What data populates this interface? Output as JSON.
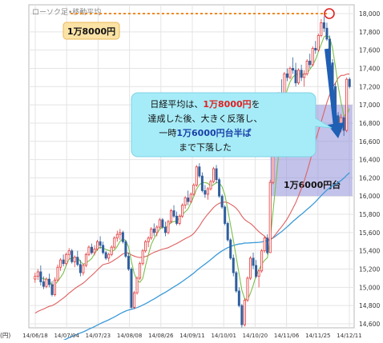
{
  "chart_data": {
    "type": "candlestick",
    "title": "ローソク足•移動平均",
    "y_unit_label": "(円)",
    "ylim": [
      14600,
      18000
    ],
    "y_ticks": [
      14600,
      14800,
      15000,
      15200,
      15400,
      15600,
      15800,
      16000,
      16200,
      16400,
      16600,
      16800,
      17000,
      17200,
      17400,
      17600,
      17800,
      18000
    ],
    "y_tick_labels": [
      "14,600",
      "14,800",
      "15,000",
      "15,200",
      "15,400",
      "15,600",
      "15,800",
      "16,000",
      "16,200",
      "16,400",
      "16,600",
      "16,800",
      "17,000",
      "17,200",
      "17,400",
      "17,600",
      "17,800",
      "18,000"
    ],
    "x_tick_labels": [
      "14/06/18",
      "14/07/04",
      "14/07/23",
      "14/08/08",
      "14/08/26",
      "14/09/11",
      "14/10/01",
      "14/10/20",
      "14/11/06",
      "14/11/25",
      "14/12/11"
    ],
    "grid": true,
    "colors": {
      "up": "#e23a3a",
      "down": "#2f5f9e",
      "ma_short": "#7bbf4a",
      "ma_mid": "#e06060",
      "ma_long": "#3a9ad9",
      "reference_line": "#f08a1e",
      "highlight_zone": "#8f8fd9",
      "arrow": "#1f5fb4",
      "callout": "#a6ecf8",
      "marker_circle": "#e02020"
    },
    "candles": [
      [
        15090,
        15160,
        15050,
        15120
      ],
      [
        15120,
        15200,
        15080,
        15170
      ],
      [
        15170,
        15240,
        15020,
        15060
      ],
      [
        15060,
        15120,
        14980,
        15010
      ],
      [
        15010,
        15110,
        14990,
        15090
      ],
      [
        15090,
        15150,
        15000,
        15030
      ],
      [
        15030,
        15070,
        14900,
        14920
      ],
      [
        14920,
        15110,
        14900,
        15080
      ],
      [
        15080,
        15250,
        15060,
        15220
      ],
      [
        15220,
        15320,
        15180,
        15300
      ],
      [
        15300,
        15360,
        15230,
        15260
      ],
      [
        15260,
        15380,
        15240,
        15360
      ],
      [
        15360,
        15430,
        15300,
        15400
      ],
      [
        15400,
        15420,
        15260,
        15280
      ],
      [
        15280,
        15350,
        15220,
        15330
      ],
      [
        15330,
        15400,
        15230,
        15250
      ],
      [
        15250,
        15300,
        15120,
        15160
      ],
      [
        15160,
        15260,
        15130,
        15240
      ],
      [
        15240,
        15380,
        15220,
        15360
      ],
      [
        15360,
        15460,
        15340,
        15440
      ],
      [
        15440,
        15480,
        15360,
        15380
      ],
      [
        15380,
        15460,
        15350,
        15420
      ],
      [
        15420,
        15520,
        15400,
        15500
      ],
      [
        15500,
        15560,
        15420,
        15460
      ],
      [
        15460,
        15500,
        15360,
        15380
      ],
      [
        15380,
        15400,
        15300,
        15320
      ],
      [
        15320,
        15380,
        15280,
        15360
      ],
      [
        15360,
        15460,
        15340,
        15440
      ],
      [
        15440,
        15560,
        15420,
        15540
      ],
      [
        15540,
        15620,
        15500,
        15580
      ],
      [
        15580,
        15640,
        15520,
        15600
      ],
      [
        15600,
        15620,
        15480,
        15500
      ],
      [
        15500,
        15520,
        15320,
        15340
      ],
      [
        15340,
        15380,
        15180,
        15200
      ],
      [
        15200,
        15220,
        14760,
        14780
      ],
      [
        14780,
        14960,
        14760,
        14940
      ],
      [
        14940,
        15120,
        14920,
        15100
      ],
      [
        15100,
        15280,
        15080,
        15260
      ],
      [
        15260,
        15420,
        15240,
        15400
      ],
      [
        15400,
        15520,
        15380,
        15500
      ],
      [
        15500,
        15560,
        15440,
        15540
      ],
      [
        15540,
        15660,
        15520,
        15640
      ],
      [
        15640,
        15700,
        15560,
        15600
      ],
      [
        15600,
        15680,
        15560,
        15660
      ],
      [
        15660,
        15760,
        15640,
        15740
      ],
      [
        15740,
        15760,
        15640,
        15660
      ],
      [
        15660,
        15720,
        15560,
        15600
      ],
      [
        15600,
        15740,
        15580,
        15720
      ],
      [
        15720,
        15860,
        15700,
        15840
      ],
      [
        15840,
        15900,
        15760,
        15780
      ],
      [
        15780,
        15830,
        15680,
        15700
      ],
      [
        15700,
        15800,
        15680,
        15780
      ],
      [
        15780,
        15920,
        15760,
        15900
      ],
      [
        15900,
        16000,
        15860,
        15980
      ],
      [
        15980,
        16060,
        15900,
        15940
      ],
      [
        15940,
        16040,
        15920,
        16020
      ],
      [
        16020,
        16140,
        16000,
        16120
      ],
      [
        16120,
        16340,
        16100,
        16320
      ],
      [
        16320,
        16360,
        16200,
        16220
      ],
      [
        16220,
        16260,
        16040,
        16060
      ],
      [
        16060,
        16120,
        15980,
        16020
      ],
      [
        16020,
        16100,
        15960,
        16080
      ],
      [
        16080,
        16180,
        16060,
        16160
      ],
      [
        16160,
        16320,
        16140,
        16300
      ],
      [
        16300,
        16340,
        16140,
        16180
      ],
      [
        16180,
        16200,
        15980,
        16000
      ],
      [
        16000,
        16020,
        15860,
        15880
      ],
      [
        15880,
        15900,
        15680,
        15700
      ],
      [
        15700,
        15720,
        15500,
        15520
      ],
      [
        15520,
        15540,
        15300,
        15320
      ],
      [
        15320,
        15360,
        15120,
        15160
      ],
      [
        15160,
        15180,
        14940,
        14960
      ],
      [
        14960,
        15000,
        14780,
        14800
      ],
      [
        14800,
        14820,
        14560,
        14590
      ],
      [
        14590,
        14880,
        14570,
        14860
      ],
      [
        14860,
        15120,
        14840,
        15100
      ],
      [
        15100,
        15340,
        15080,
        15320
      ],
      [
        15320,
        15380,
        15200,
        15240
      ],
      [
        15240,
        15300,
        15100,
        15120
      ],
      [
        15120,
        15200,
        15000,
        15180
      ],
      [
        15180,
        15420,
        15160,
        15400
      ],
      [
        15400,
        15560,
        15380,
        15540
      ],
      [
        15540,
        15580,
        15360,
        15380
      ],
      [
        15380,
        16180,
        15380,
        16150
      ],
      [
        16150,
        16720,
        16130,
        16700
      ],
      [
        16700,
        16980,
        16680,
        16960
      ],
      [
        16960,
        17140,
        16940,
        17120
      ],
      [
        17120,
        17280,
        17040,
        17100
      ],
      [
        17100,
        17360,
        17080,
        17340
      ],
      [
        17340,
        17400,
        17260,
        17300
      ],
      [
        17300,
        17420,
        17280,
        17400
      ],
      [
        17400,
        17520,
        17340,
        17380
      ],
      [
        17380,
        17460,
        17200,
        17240
      ],
      [
        17240,
        17400,
        17220,
        17380
      ],
      [
        17380,
        17440,
        17260,
        17300
      ],
      [
        17300,
        17380,
        17200,
        17340
      ],
      [
        17340,
        17500,
        17320,
        17480
      ],
      [
        17480,
        17560,
        17400,
        17440
      ],
      [
        17440,
        17640,
        17420,
        17620
      ],
      [
        17620,
        17700,
        17560,
        17600
      ],
      [
        17600,
        17780,
        17580,
        17760
      ],
      [
        17760,
        17940,
        17740,
        17900
      ],
      [
        17900,
        17970,
        17800,
        17840
      ],
      [
        17840,
        17900,
        17700,
        17720
      ],
      [
        17720,
        17760,
        17440,
        17460
      ],
      [
        17460,
        17500,
        17180,
        17200
      ],
      [
        17200,
        17240,
        16840,
        16880
      ],
      [
        16880,
        16920,
        16700,
        16740
      ],
      [
        16740,
        16900,
        16700,
        16860
      ],
      [
        16860,
        16880,
        16660,
        16720
      ],
      [
        16720,
        17300,
        16700,
        17280
      ],
      [
        17280,
        17300,
        17180,
        17200
      ]
    ],
    "annotations": [
      {
        "id": "level_label",
        "text": "1万8000円",
        "value": 18000
      },
      {
        "id": "zone_label",
        "text": "1万6000円台",
        "range": [
          16000,
          17000
        ]
      },
      {
        "id": "callout",
        "lines": [
          [
            {
              "t": "日経平均は、",
              "c": "#111111"
            },
            {
              "t": "1万8000円",
              "c": "#e02020"
            },
            {
              "t": "を",
              "c": "#111111"
            }
          ],
          [
            {
              "t": "達成した後、大きく反落し、",
              "c": "#111111"
            }
          ],
          [
            {
              "t": "一時",
              "c": "#111111"
            },
            {
              "t": "1万6000円台半ば",
              "c": "#1a3fa8"
            }
          ],
          [
            {
              "t": "まで下落した",
              "c": "#111111"
            }
          ]
        ]
      }
    ]
  }
}
